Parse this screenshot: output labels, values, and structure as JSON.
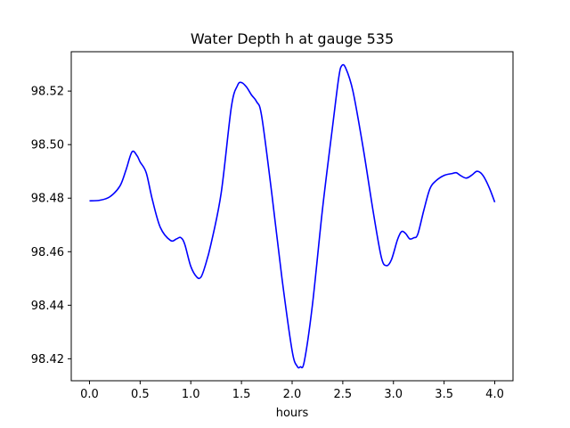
{
  "chart_data": {
    "type": "line",
    "title": "Water Depth h at gauge 535",
    "xlabel": "hours",
    "ylabel": "",
    "xlim": [
      -0.18,
      4.18
    ],
    "ylim": [
      98.4118,
      98.5347
    ],
    "x_ticks": [
      {
        "value": 0.0,
        "label": "0.0"
      },
      {
        "value": 0.5,
        "label": "0.5"
      },
      {
        "value": 1.0,
        "label": "1.0"
      },
      {
        "value": 1.5,
        "label": "1.5"
      },
      {
        "value": 2.0,
        "label": "2.0"
      },
      {
        "value": 2.5,
        "label": "2.5"
      },
      {
        "value": 3.0,
        "label": "3.0"
      },
      {
        "value": 3.5,
        "label": "3.5"
      },
      {
        "value": 4.0,
        "label": "4.0"
      }
    ],
    "y_ticks": [
      {
        "value": 98.42,
        "label": "98.42"
      },
      {
        "value": 98.44,
        "label": "98.44"
      },
      {
        "value": 98.46,
        "label": "98.46"
      },
      {
        "value": 98.48,
        "label": "98.48"
      },
      {
        "value": 98.5,
        "label": "98.50"
      },
      {
        "value": 98.52,
        "label": "98.52"
      }
    ],
    "grid": false,
    "series": [
      {
        "color": "#0000ff",
        "x": [
          0.0,
          0.1,
          0.2,
          0.3,
          0.36,
          0.42,
          0.47,
          0.5,
          0.56,
          0.62,
          0.7,
          0.8,
          0.86,
          0.9,
          0.94,
          1.0,
          1.06,
          1.1,
          1.14,
          1.2,
          1.3,
          1.4,
          1.46,
          1.5,
          1.55,
          1.6,
          1.65,
          1.7,
          1.8,
          1.9,
          2.0,
          2.05,
          2.08,
          2.12,
          2.2,
          2.3,
          2.4,
          2.46,
          2.49,
          2.53,
          2.6,
          2.7,
          2.8,
          2.88,
          2.93,
          2.98,
          3.04,
          3.08,
          3.12,
          3.16,
          3.2,
          3.24,
          3.3,
          3.36,
          3.42,
          3.5,
          3.58,
          3.62,
          3.66,
          3.72,
          3.78,
          3.82,
          3.86,
          3.9,
          3.95,
          4.0
        ],
        "values": [
          98.479,
          98.4792,
          98.4805,
          98.4845,
          98.4905,
          98.4973,
          98.4958,
          98.4935,
          98.4895,
          98.4795,
          98.469,
          98.4642,
          98.4648,
          98.4653,
          98.4628,
          98.4545,
          98.4505,
          98.4505,
          98.4545,
          98.463,
          98.482,
          98.514,
          98.522,
          98.5232,
          98.5215,
          98.5185,
          98.516,
          98.5105,
          98.4815,
          98.45,
          98.423,
          98.4172,
          98.417,
          98.419,
          98.44,
          98.476,
          98.507,
          98.525,
          98.5295,
          98.5285,
          98.52,
          98.499,
          98.475,
          98.458,
          98.4548,
          98.457,
          98.4645,
          98.4675,
          98.4668,
          98.4648,
          98.4652,
          98.4665,
          98.4755,
          98.4835,
          98.4865,
          98.4885,
          98.4892,
          98.4895,
          98.4885,
          98.4875,
          98.4888,
          98.49,
          98.4895,
          98.4875,
          98.4835,
          98.4785
        ]
      }
    ]
  }
}
